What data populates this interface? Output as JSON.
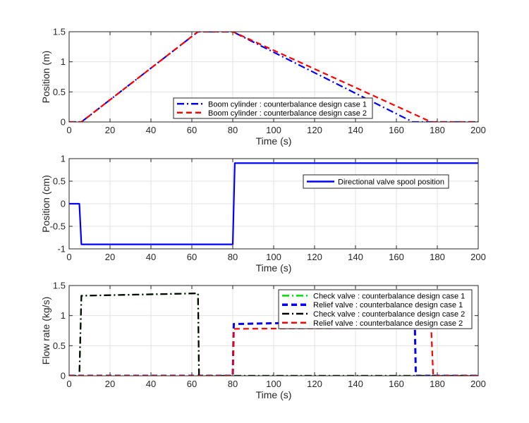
{
  "chart_data": [
    {
      "type": "line",
      "xlabel": "Time (s)",
      "ylabel": "Position (m)",
      "xlim": [
        0,
        200
      ],
      "ylim": [
        0,
        1.5
      ],
      "xticks": [
        "0",
        "20",
        "40",
        "60",
        "80",
        "100",
        "120",
        "140",
        "160",
        "180",
        "200"
      ],
      "yticks": [
        "0",
        "0.5",
        "1",
        "1.5"
      ],
      "grid": true,
      "legend_position": "bottom-center",
      "series": [
        {
          "name": "Boom cylinder : counterbalance design case 1",
          "color": "#0000ff",
          "dash": "dashdot",
          "x": [
            0,
            6,
            63,
            80,
            168,
            200
          ],
          "y": [
            0,
            0,
            1.5,
            1.5,
            0,
            0
          ]
        },
        {
          "name": "Boom cylinder : counterbalance design case 2",
          "color": "#ff0000",
          "dash": "dash",
          "x": [
            0,
            6,
            63,
            80,
            177,
            200
          ],
          "y": [
            0,
            0,
            1.5,
            1.5,
            0,
            0
          ]
        }
      ]
    },
    {
      "type": "line",
      "xlabel": "Time (s)",
      "ylabel": "Position (cm)",
      "xlim": [
        0,
        200
      ],
      "ylim": [
        -1,
        1
      ],
      "xticks": [
        "0",
        "20",
        "40",
        "60",
        "80",
        "100",
        "120",
        "140",
        "160",
        "180",
        "200"
      ],
      "yticks": [
        "-1",
        "-0.5",
        "0",
        "0.5",
        "1"
      ],
      "grid": true,
      "legend_position": "upper-right",
      "series": [
        {
          "name": "Directional valve spool position",
          "color": "#0000ff",
          "dash": "solid",
          "x": [
            0,
            5,
            6,
            80,
            81,
            200
          ],
          "y": [
            0,
            0,
            -0.9,
            -0.9,
            0.9,
            0.9
          ]
        }
      ]
    },
    {
      "type": "line",
      "xlabel": "Time (s)",
      "ylabel": "Flow rate (kg/s)",
      "xlim": [
        0,
        200
      ],
      "ylim": [
        0,
        1.5
      ],
      "xticks": [
        "0",
        "20",
        "40",
        "60",
        "80",
        "100",
        "120",
        "140",
        "160",
        "180",
        "200"
      ],
      "yticks": [
        "0",
        "0.5",
        "1",
        "1.5"
      ],
      "grid": true,
      "legend_position": "upper-right",
      "series": [
        {
          "name": "Check valve : counterbalance design case 1",
          "color": "#00dd00",
          "dash": "dashdot",
          "x": [
            0,
            5,
            6,
            63,
            63.5,
            200
          ],
          "y": [
            0,
            0,
            1.33,
            1.37,
            0,
            0
          ]
        },
        {
          "name": "Relief valve : counterbalance design case 1",
          "color": "#0000ff",
          "dash": "dash",
          "x": [
            0,
            80,
            80.5,
            110,
            169,
            169.5,
            200
          ],
          "y": [
            0,
            0,
            0.86,
            0.88,
            0.88,
            0,
            0
          ]
        },
        {
          "name": "Check valve : counterbalance design case 2",
          "color": "#000000",
          "dash": "dashdot",
          "x": [
            0,
            5,
            6,
            63,
            63.5,
            200
          ],
          "y": [
            0,
            0,
            1.33,
            1.37,
            0,
            0
          ]
        },
        {
          "name": "Relief valve : counterbalance design case 2",
          "color": "#ff0000",
          "dash": "dash",
          "x": [
            0,
            80,
            80.5,
            177,
            178,
            200
          ],
          "y": [
            0,
            0,
            0.78,
            0.8,
            0,
            0
          ]
        }
      ]
    }
  ]
}
